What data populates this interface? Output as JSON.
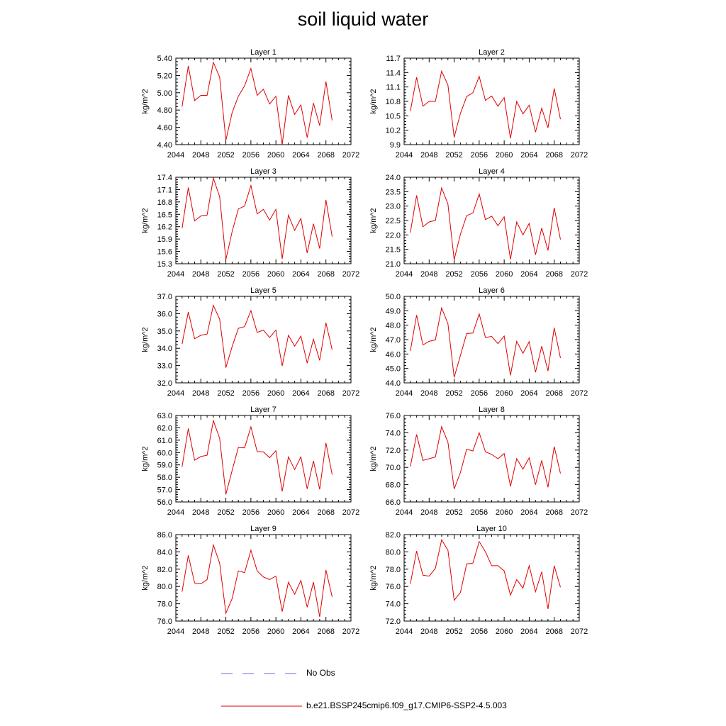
{
  "title": "soil liquid water",
  "legend": [
    {
      "label": "No Obs",
      "color": "#6b6bd8",
      "style": "dashed"
    },
    {
      "label": "b.e21.BSSP245cmip6.f09_g17.CMIP6-SSP2-4.5.003",
      "color": "#e00000",
      "style": "solid"
    }
  ],
  "chart_data": [
    {
      "type": "line",
      "title": "Layer 1",
      "ylabel": "kg/m^2",
      "xlim": [
        2044,
        2072
      ],
      "xticks": [
        2044,
        2048,
        2052,
        2056,
        2060,
        2064,
        2068,
        2072
      ],
      "ylim": [
        4.4,
        5.4
      ],
      "yticks": [
        "4.40",
        "4.60",
        "4.80",
        "5.00",
        "5.20",
        "5.40"
      ],
      "color": "#e00000",
      "x": [
        2045,
        2046,
        2047,
        2048,
        2049,
        2050,
        2051,
        2052,
        2053,
        2054,
        2055,
        2056,
        2057,
        2058,
        2059,
        2060,
        2061,
        2062,
        2063,
        2064,
        2065,
        2066,
        2067,
        2068,
        2069
      ],
      "y": [
        4.84,
        5.31,
        4.91,
        4.97,
        4.97,
        5.35,
        5.18,
        4.45,
        4.77,
        4.96,
        5.08,
        5.28,
        4.97,
        5.04,
        4.87,
        4.96,
        4.4,
        4.97,
        4.75,
        4.86,
        4.48,
        4.88,
        4.62,
        5.13,
        4.68
      ]
    },
    {
      "type": "line",
      "title": "Layer 2",
      "ylabel": "kg/m^2",
      "xlim": [
        2044,
        2072
      ],
      "xticks": [
        2044,
        2048,
        2052,
        2056,
        2060,
        2064,
        2068,
        2072
      ],
      "ylim": [
        9.9,
        11.7
      ],
      "yticks": [
        "9.9",
        "10.2",
        "10.5",
        "10.8",
        "11.1",
        "11.4",
        "11.7"
      ],
      "color": "#e00000",
      "x": [
        2045,
        2046,
        2047,
        2048,
        2049,
        2050,
        2051,
        2052,
        2053,
        2054,
        2055,
        2056,
        2057,
        2058,
        2059,
        2060,
        2061,
        2062,
        2063,
        2064,
        2065,
        2066,
        2067,
        2068,
        2069
      ],
      "y": [
        10.6,
        11.3,
        10.7,
        10.8,
        10.8,
        11.43,
        11.14,
        10.05,
        10.55,
        10.9,
        10.98,
        11.32,
        10.82,
        10.91,
        10.7,
        10.88,
        10.03,
        10.8,
        10.54,
        10.72,
        10.16,
        10.66,
        10.25,
        11.07,
        10.43
      ]
    },
    {
      "type": "line",
      "title": "Layer 3",
      "ylabel": "kg/m^2",
      "xlim": [
        2044,
        2072
      ],
      "xticks": [
        2044,
        2048,
        2052,
        2056,
        2060,
        2064,
        2068,
        2072
      ],
      "ylim": [
        15.3,
        17.4
      ],
      "yticks": [
        "15.3",
        "15.6",
        "15.9",
        "16.2",
        "16.5",
        "16.8",
        "17.1",
        "17.4"
      ],
      "color": "#e00000",
      "x": [
        2045,
        2046,
        2047,
        2048,
        2049,
        2050,
        2051,
        2052,
        2053,
        2054,
        2055,
        2056,
        2057,
        2058,
        2059,
        2060,
        2061,
        2062,
        2063,
        2064,
        2065,
        2066,
        2067,
        2068,
        2069
      ],
      "y": [
        16.16,
        17.15,
        16.34,
        16.46,
        16.48,
        17.38,
        16.93,
        15.4,
        16.08,
        16.63,
        16.7,
        17.2,
        16.51,
        16.62,
        16.36,
        16.62,
        15.42,
        16.48,
        16.11,
        16.4,
        15.56,
        16.27,
        15.67,
        16.85,
        15.96
      ]
    },
    {
      "type": "line",
      "title": "Layer 4",
      "ylabel": "kg/m^2",
      "xlim": [
        2044,
        2072
      ],
      "xticks": [
        2044,
        2048,
        2052,
        2056,
        2060,
        2064,
        2068,
        2072
      ],
      "ylim": [
        21.0,
        24.0
      ],
      "yticks": [
        "21.0",
        "21.5",
        "22.0",
        "22.5",
        "23.0",
        "23.5",
        "24.0"
      ],
      "color": "#e00000",
      "x": [
        2045,
        2046,
        2047,
        2048,
        2049,
        2050,
        2051,
        2052,
        2053,
        2054,
        2055,
        2056,
        2057,
        2058,
        2059,
        2060,
        2061,
        2062,
        2063,
        2064,
        2065,
        2066,
        2067,
        2068,
        2069
      ],
      "y": [
        22.08,
        23.37,
        22.28,
        22.45,
        22.5,
        23.63,
        23.07,
        21.14,
        22.02,
        22.67,
        22.76,
        23.42,
        22.53,
        22.65,
        22.32,
        22.63,
        21.15,
        22.45,
        22.0,
        22.4,
        21.31,
        22.24,
        21.46,
        22.94,
        21.84
      ]
    },
    {
      "type": "line",
      "title": "Layer 5",
      "ylabel": "kg/m^2",
      "xlim": [
        2044,
        2072
      ],
      "xticks": [
        2044,
        2048,
        2052,
        2056,
        2060,
        2064,
        2068,
        2072
      ],
      "ylim": [
        32.0,
        37.0
      ],
      "yticks": [
        "32.0",
        "33.0",
        "34.0",
        "35.0",
        "36.0",
        "37.0"
      ],
      "color": "#e00000",
      "x": [
        2045,
        2046,
        2047,
        2048,
        2049,
        2050,
        2051,
        2052,
        2053,
        2054,
        2055,
        2056,
        2057,
        2058,
        2059,
        2060,
        2061,
        2062,
        2063,
        2064,
        2065,
        2066,
        2067,
        2068,
        2069
      ],
      "y": [
        34.25,
        36.1,
        34.55,
        34.75,
        34.82,
        36.48,
        35.68,
        32.88,
        34.1,
        35.15,
        35.25,
        36.18,
        34.92,
        35.05,
        34.62,
        35.05,
        32.98,
        34.75,
        34.12,
        34.7,
        33.14,
        34.52,
        33.3,
        35.47,
        33.92
      ]
    },
    {
      "type": "line",
      "title": "Layer 6",
      "ylabel": "kg/m^2",
      "xlim": [
        2044,
        2072
      ],
      "xticks": [
        2044,
        2048,
        2052,
        2056,
        2060,
        2064,
        2068,
        2072
      ],
      "ylim": [
        44.0,
        50.0
      ],
      "yticks": [
        "44.0",
        "45.0",
        "46.0",
        "47.0",
        "48.0",
        "49.0",
        "50.0"
      ],
      "color": "#e00000",
      "x": [
        2045,
        2046,
        2047,
        2048,
        2049,
        2050,
        2051,
        2052,
        2053,
        2054,
        2055,
        2056,
        2057,
        2058,
        2059,
        2060,
        2061,
        2062,
        2063,
        2064,
        2065,
        2066,
        2067,
        2068,
        2069
      ],
      "y": [
        46.22,
        48.7,
        46.63,
        46.88,
        46.98,
        49.2,
        48.1,
        44.38,
        45.9,
        47.42,
        47.45,
        48.78,
        47.15,
        47.22,
        46.72,
        47.25,
        44.52,
        46.88,
        46.05,
        46.85,
        44.74,
        46.55,
        44.82,
        47.82,
        45.72
      ]
    },
    {
      "type": "line",
      "title": "Layer 7",
      "ylabel": "kg/m^2",
      "xlim": [
        2044,
        2072
      ],
      "xticks": [
        2044,
        2048,
        2052,
        2056,
        2060,
        2064,
        2068,
        2072
      ],
      "ylim": [
        56.0,
        63.0
      ],
      "yticks": [
        "56.0",
        "57.0",
        "58.0",
        "59.0",
        "60.0",
        "61.0",
        "62.0",
        "63.0"
      ],
      "color": "#e00000",
      "x": [
        2045,
        2046,
        2047,
        2048,
        2049,
        2050,
        2051,
        2052,
        2053,
        2054,
        2055,
        2056,
        2057,
        2058,
        2059,
        2060,
        2061,
        2062,
        2063,
        2064,
        2065,
        2066,
        2067,
        2068,
        2069
      ],
      "y": [
        58.85,
        61.95,
        59.38,
        59.68,
        59.78,
        62.58,
        61.15,
        56.62,
        58.55,
        60.42,
        60.38,
        62.08,
        60.08,
        60.05,
        59.58,
        60.15,
        56.85,
        59.65,
        58.62,
        59.65,
        57.05,
        59.32,
        57.02,
        60.78,
        58.22
      ]
    },
    {
      "type": "line",
      "title": "Layer 8",
      "ylabel": "kg/m^2",
      "xlim": [
        2044,
        2072
      ],
      "xticks": [
        2044,
        2048,
        2052,
        2056,
        2060,
        2064,
        2068,
        2072
      ],
      "ylim": [
        66.0,
        76.0
      ],
      "yticks": [
        "66.0",
        "68.0",
        "70.0",
        "72.0",
        "74.0",
        "76.0"
      ],
      "color": "#e00000",
      "x": [
        2045,
        2046,
        2047,
        2048,
        2049,
        2050,
        2051,
        2052,
        2053,
        2054,
        2055,
        2056,
        2057,
        2058,
        2059,
        2060,
        2061,
        2062,
        2063,
        2064,
        2065,
        2066,
        2067,
        2068,
        2069
      ],
      "y": [
        70.1,
        73.8,
        70.8,
        71.0,
        71.2,
        74.7,
        72.9,
        67.5,
        69.4,
        72.1,
        71.9,
        74.0,
        71.8,
        71.5,
        71.0,
        71.6,
        67.8,
        71.0,
        69.8,
        71.1,
        68.0,
        70.8,
        67.7,
        72.4,
        69.3
      ]
    },
    {
      "type": "line",
      "title": "Layer 9",
      "ylabel": "kg/m^2",
      "xlim": [
        2044,
        2072
      ],
      "xticks": [
        2044,
        2048,
        2052,
        2056,
        2060,
        2064,
        2068,
        2072
      ],
      "ylim": [
        76.0,
        86.0
      ],
      "yticks": [
        "76.0",
        "78.0",
        "80.0",
        "82.0",
        "84.0",
        "86.0"
      ],
      "color": "#e00000",
      "x": [
        2045,
        2046,
        2047,
        2048,
        2049,
        2050,
        2051,
        2052,
        2053,
        2054,
        2055,
        2056,
        2057,
        2058,
        2059,
        2060,
        2061,
        2062,
        2063,
        2064,
        2065,
        2066,
        2067,
        2068,
        2069
      ],
      "y": [
        79.4,
        83.6,
        80.4,
        80.3,
        80.8,
        84.8,
        82.7,
        76.9,
        78.6,
        81.8,
        81.6,
        84.2,
        81.8,
        81.1,
        80.8,
        81.2,
        77.1,
        80.5,
        79.1,
        80.7,
        77.6,
        80.5,
        76.5,
        81.9,
        78.8
      ]
    },
    {
      "type": "line",
      "title": "Layer 10",
      "ylabel": "kg/m^2",
      "xlim": [
        2044,
        2072
      ],
      "xticks": [
        2044,
        2048,
        2052,
        2056,
        2060,
        2064,
        2068,
        2072
      ],
      "ylim": [
        72.0,
        82.0
      ],
      "yticks": [
        "72.0",
        "74.0",
        "76.0",
        "78.0",
        "80.0",
        "82.0"
      ],
      "color": "#e00000",
      "x": [
        2045,
        2046,
        2047,
        2048,
        2049,
        2050,
        2051,
        2052,
        2053,
        2054,
        2055,
        2056,
        2057,
        2058,
        2059,
        2060,
        2061,
        2062,
        2063,
        2064,
        2065,
        2066,
        2067,
        2068,
        2069
      ],
      "y": [
        76.3,
        80.1,
        77.3,
        77.2,
        78.1,
        81.4,
        80.2,
        74.4,
        75.3,
        78.6,
        78.7,
        81.2,
        80.0,
        78.4,
        78.4,
        77.8,
        75.0,
        76.8,
        75.8,
        78.4,
        75.4,
        77.7,
        73.4,
        78.4,
        75.9
      ]
    }
  ]
}
